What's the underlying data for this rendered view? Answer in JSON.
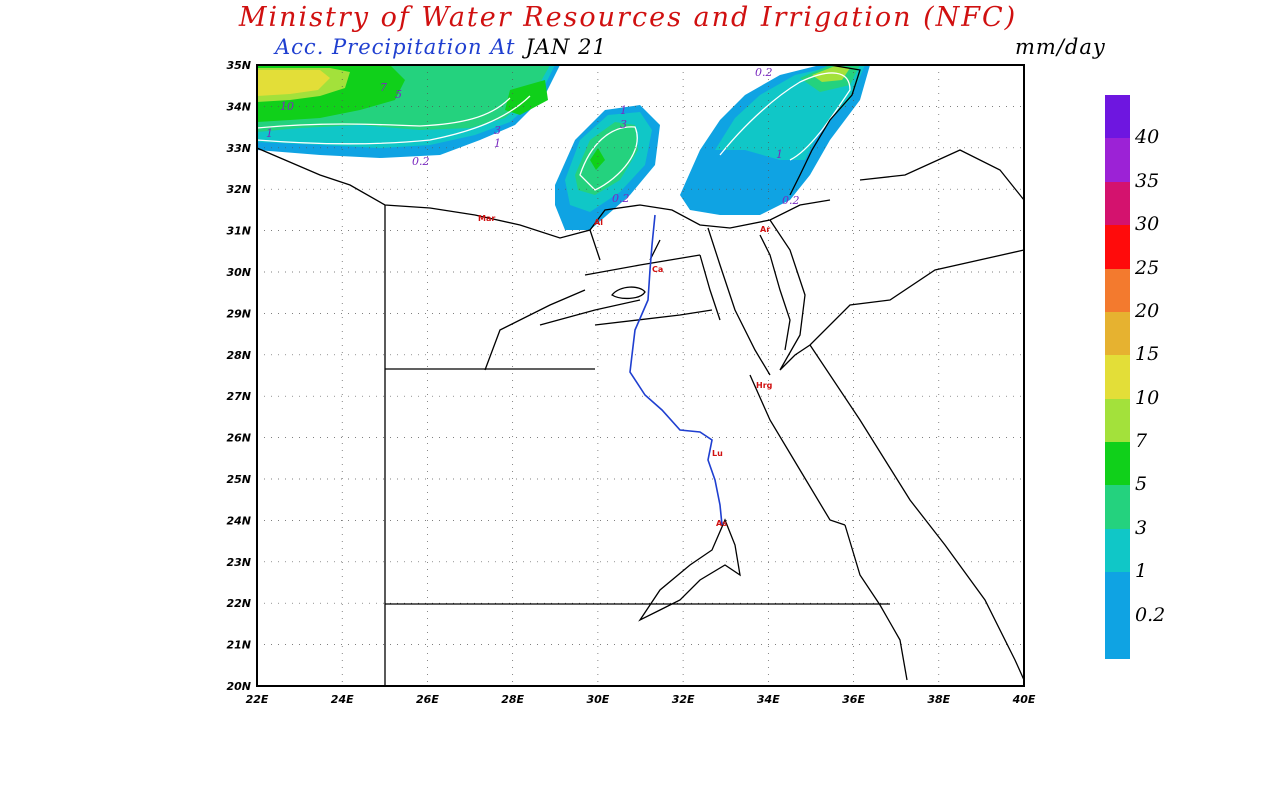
{
  "header": {
    "title": "Ministry of Water Resources and Irrigation (NFC)",
    "subtitle": "Acc. Precipitation  At",
    "date": "JAN 21",
    "units": "mm/day"
  },
  "map": {
    "lat_labels": [
      "35N",
      "34N",
      "33N",
      "32N",
      "31N",
      "30N",
      "29N",
      "28N",
      "27N",
      "26N",
      "25N",
      "24N",
      "23N",
      "22N",
      "21N",
      "20N"
    ],
    "lon_labels": [
      "22E",
      "24E",
      "26E",
      "28E",
      "30E",
      "32E",
      "34E",
      "36E",
      "38E",
      "40E"
    ],
    "contour_labels": [
      "10",
      "7",
      "5",
      "3",
      "1",
      "1",
      "0.2",
      "1",
      "3",
      "0.2",
      "1",
      "0.2",
      "0.2",
      "1"
    ],
    "cities": [
      "Mar",
      "Al",
      "Ca",
      "Ar",
      "Hrg",
      "Lu",
      "As"
    ]
  },
  "legend": {
    "items": [
      {
        "label": "40",
        "color": "#9c22d6"
      },
      {
        "label": "35",
        "color": "#d4126e"
      },
      {
        "label": "30",
        "color": "#ff0b0b"
      },
      {
        "label": "25",
        "color": "#f37a2e"
      },
      {
        "label": "20",
        "color": "#e6b230"
      },
      {
        "label": "15",
        "color": "#e3de38"
      },
      {
        "label": "10",
        "color": "#a3e13b"
      },
      {
        "label": "7",
        "color": "#10d01a"
      },
      {
        "label": "5",
        "color": "#24d27e"
      },
      {
        "label": "3",
        "color": "#10c7c7"
      },
      {
        "label": "1",
        "color": "#0fa3e3"
      },
      {
        "label": "0.2",
        "color": "#0fa3e3"
      }
    ],
    "top_color": "#6e16e0"
  }
}
